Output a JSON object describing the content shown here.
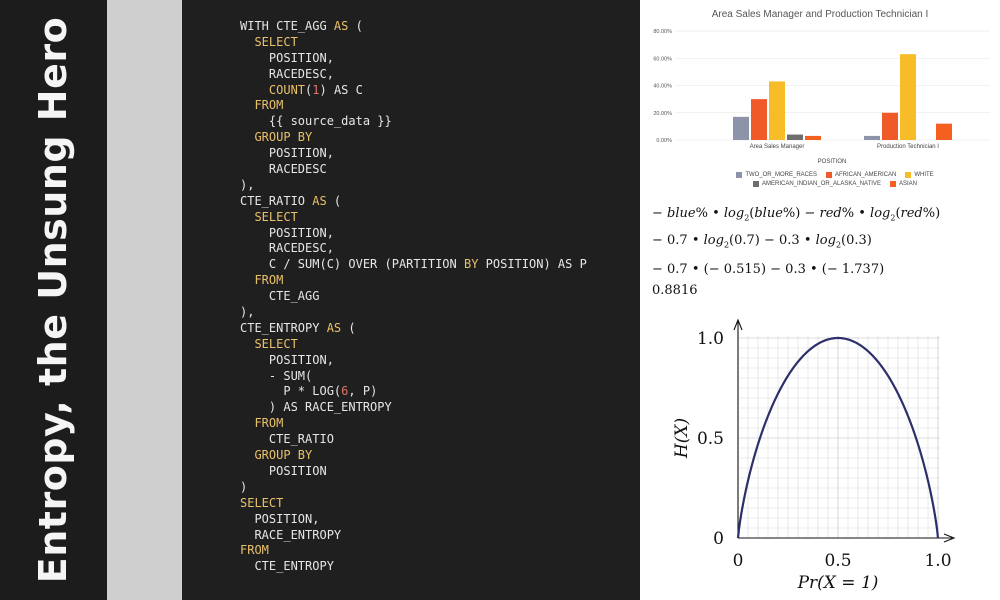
{
  "slide": {
    "title": "Entropy, the Unsung Hero"
  },
  "code": {
    "lines": [
      [
        [
          "WITH CTE_AGG ",
          "tx"
        ],
        [
          "AS",
          "kw"
        ],
        [
          " (",
          "tx"
        ]
      ],
      [
        [
          "  ",
          "tx"
        ],
        [
          "SELECT",
          "kw"
        ]
      ],
      [
        [
          "    POSITION,",
          "tx"
        ]
      ],
      [
        [
          "    RACEDESC,",
          "tx"
        ]
      ],
      [
        [
          "    ",
          "tx"
        ],
        [
          "COUNT",
          "kw"
        ],
        [
          "(",
          "tx"
        ],
        [
          "1",
          "num"
        ],
        [
          ") AS C",
          "tx"
        ]
      ],
      [
        [
          "  ",
          "tx"
        ],
        [
          "FROM",
          "kw"
        ]
      ],
      [
        [
          "    {{ source_data }}",
          "tx"
        ]
      ],
      [
        [
          "  ",
          "tx"
        ],
        [
          "GROUP BY",
          "kw"
        ]
      ],
      [
        [
          "    POSITION,",
          "tx"
        ]
      ],
      [
        [
          "    RACEDESC",
          "tx"
        ]
      ],
      [
        [
          "),",
          "tx"
        ]
      ],
      [
        [
          "CTE_RATIO ",
          "tx"
        ],
        [
          "AS",
          "kw"
        ],
        [
          " (",
          "tx"
        ]
      ],
      [
        [
          "  ",
          "tx"
        ],
        [
          "SELECT",
          "kw"
        ]
      ],
      [
        [
          "    POSITION,",
          "tx"
        ]
      ],
      [
        [
          "    RACEDESC,",
          "tx"
        ]
      ],
      [
        [
          "    C / SUM(C) OVER (PARTITION ",
          "tx"
        ],
        [
          "BY",
          "kw"
        ],
        [
          " POSITION) AS P",
          "tx"
        ]
      ],
      [
        [
          "  ",
          "tx"
        ],
        [
          "FROM",
          "kw"
        ]
      ],
      [
        [
          "    CTE_AGG",
          "tx"
        ]
      ],
      [
        [
          "),",
          "tx"
        ]
      ],
      [
        [
          "CTE_ENTROPY ",
          "tx"
        ],
        [
          "AS",
          "kw"
        ],
        [
          " (",
          "tx"
        ]
      ],
      [
        [
          "  ",
          "tx"
        ],
        [
          "SELECT",
          "kw"
        ]
      ],
      [
        [
          "    POSITION,",
          "tx"
        ]
      ],
      [
        [
          "    - SUM(",
          "tx"
        ]
      ],
      [
        [
          "      P * LOG(",
          "tx"
        ],
        [
          "6",
          "num"
        ],
        [
          ", P)",
          "tx"
        ]
      ],
      [
        [
          "    ) AS RACE_ENTROPY",
          "tx"
        ]
      ],
      [
        [
          "  ",
          "tx"
        ],
        [
          "FROM",
          "kw"
        ]
      ],
      [
        [
          "    CTE_RATIO",
          "tx"
        ]
      ],
      [
        [
          "  ",
          "tx"
        ],
        [
          "GROUP BY",
          "kw"
        ]
      ],
      [
        [
          "    POSITION",
          "tx"
        ]
      ],
      [
        [
          ")",
          "tx"
        ]
      ],
      [
        [
          "SELECT",
          "kw"
        ]
      ],
      [
        [
          "  POSITION,",
          "tx"
        ]
      ],
      [
        [
          "  RACE_ENTROPY",
          "tx"
        ]
      ],
      [
        [
          "FROM",
          "kw"
        ]
      ],
      [
        [
          "  CTE_ENTROPY",
          "tx"
        ]
      ]
    ]
  },
  "equations": {
    "line1": "blue% • log2(blue%) − red% • log2(red%)",
    "line2": "0.7 • log2(0.7) − 0.3 • log2(0.3)",
    "line3": "0.7 • (− 0.515) − 0.3 • (− 1.737)",
    "result": "0.8816"
  },
  "chart_data": [
    {
      "type": "bar",
      "title": "Area Sales Manager and Production Technician I",
      "xlabel": "POSITION",
      "categories": [
        "Area Sales Manager",
        "Production Technician I"
      ],
      "yticks": [
        "0.00%",
        "20.00%",
        "40.00%",
        "60.00%",
        "80.00%"
      ],
      "ylim": [
        0,
        80
      ],
      "series": [
        {
          "name": "TWO_OR_MORE_RACES",
          "color": "#8d94aa",
          "values": [
            17,
            3
          ]
        },
        {
          "name": "AFRICAN_AMERICAN",
          "color": "#f05a28",
          "values": [
            30,
            20
          ]
        },
        {
          "name": "WHITE",
          "color": "#f6bd29",
          "values": [
            43,
            63
          ]
        },
        {
          "name": "AMERICAN_INDIAN_OR_ALASKA_NATIVE",
          "color": "#6e6e6e",
          "values": [
            4,
            null
          ]
        },
        {
          "name": "ASIAN",
          "color": "#f46020",
          "values": [
            3,
            12
          ]
        }
      ],
      "legend_position": "bottom"
    },
    {
      "type": "line",
      "xlabel": "Pr(X = 1)",
      "ylabel": "H(X)",
      "xlim": [
        0,
        1
      ],
      "ylim": [
        0,
        1
      ],
      "xticks": [
        "0",
        "0.5",
        "1.0"
      ],
      "yticks": [
        "0",
        "0.5",
        "1.0"
      ],
      "grid": true,
      "series": [
        {
          "color": "#2d2f6b",
          "function": "binary_entropy"
        }
      ]
    }
  ]
}
